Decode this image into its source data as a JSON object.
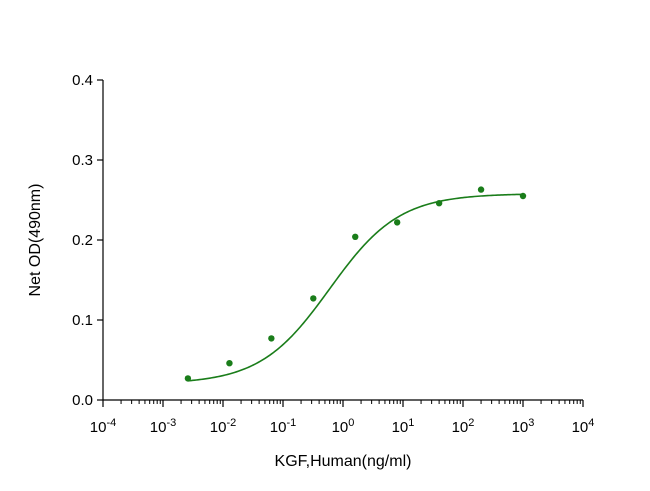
{
  "chart_data": {
    "type": "scatter",
    "title": "",
    "xlabel": "KGF,Human(ng/ml)",
    "ylabel": "Net OD(490nm)",
    "x_scale": "log10",
    "xlim": [
      0.0001,
      10000
    ],
    "ylim": [
      0,
      0.4
    ],
    "x_ticks": [
      {
        "base": "10",
        "exp": "-4"
      },
      {
        "base": "10",
        "exp": "-3"
      },
      {
        "base": "10",
        "exp": "-2"
      },
      {
        "base": "10",
        "exp": "-1"
      },
      {
        "base": "10",
        "exp": "0"
      },
      {
        "base": "10",
        "exp": "1"
      },
      {
        "base": "10",
        "exp": "2"
      },
      {
        "base": "10",
        "exp": "3"
      },
      {
        "base": "10",
        "exp": "4"
      }
    ],
    "y_ticks": [
      "0.0",
      "0.1",
      "0.2",
      "0.3",
      "0.4"
    ],
    "grid": false,
    "legend": "none",
    "color": "#1a7d1a",
    "series": [
      {
        "points": [
          {
            "x": 0.0026,
            "y": 0.027
          },
          {
            "x": 0.0128,
            "y": 0.046
          },
          {
            "x": 0.064,
            "y": 0.077
          },
          {
            "x": 0.32,
            "y": 0.127
          },
          {
            "x": 1.6,
            "y": 0.204
          },
          {
            "x": 8.0,
            "y": 0.222
          },
          {
            "x": 40,
            "y": 0.246
          },
          {
            "x": 200,
            "y": 0.263
          },
          {
            "x": 1000,
            "y": 0.255
          }
        ],
        "fit": {
          "model": "4PL",
          "bottom": 0.02,
          "top": 0.258,
          "ec50": 0.6,
          "hill": 0.75,
          "x_from": 0.0026,
          "x_to": 1000
        }
      }
    ]
  }
}
